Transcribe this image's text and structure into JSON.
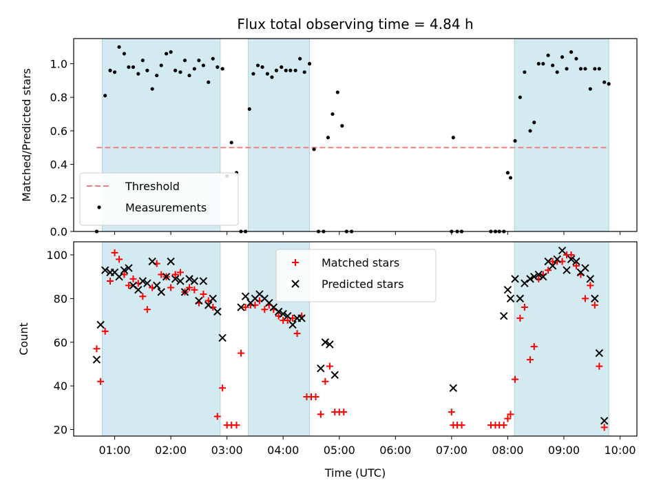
{
  "chart_data": {
    "title": "Flux total observing time = 4.84 h",
    "xlabel": "Time (UTC)",
    "x_tick_labels": [
      "01:00",
      "02:00",
      "03:00",
      "04:00",
      "05:00",
      "06:00",
      "07:00",
      "08:00",
      "09:00",
      "10:00"
    ],
    "x_range_hours": [
      0.27,
      10.3
    ],
    "shaded_intervals_hours": [
      [
        0.78,
        2.88
      ],
      [
        3.38,
        4.47
      ],
      [
        8.12,
        9.8
      ]
    ],
    "shade_color": "#d3eaf1",
    "panels": [
      {
        "type": "scatter",
        "ylabel": "Matched/Predicted stars",
        "ylim": [
          0,
          1.15
        ],
        "yticks": [
          0.0,
          0.2,
          0.4,
          0.6,
          0.8,
          1.0
        ],
        "ytick_labels": [
          "0.0",
          "0.2",
          "0.4",
          "0.6",
          "0.8",
          "1.0"
        ],
        "legend": "lower-left",
        "threshold": {
          "name": "Threshold",
          "value": 0.5,
          "x_range": [
            0.68,
            9.8
          ],
          "color": "#f08080"
        },
        "series": [
          {
            "name": "Measurements",
            "color": "#000000",
            "marker": "dot",
            "points": [
              [
                0.68,
                0.0
              ],
              [
                0.83,
                0.81
              ],
              [
                0.92,
                0.96
              ],
              [
                1.0,
                0.95
              ],
              [
                1.08,
                1.1
              ],
              [
                1.17,
                1.06
              ],
              [
                1.25,
                0.98
              ],
              [
                1.33,
                0.98
              ],
              [
                1.42,
                0.94
              ],
              [
                1.5,
                1.02
              ],
              [
                1.58,
                0.96
              ],
              [
                1.67,
                0.85
              ],
              [
                1.75,
                0.93
              ],
              [
                1.83,
                0.99
              ],
              [
                1.92,
                1.06
              ],
              [
                2.0,
                1.07
              ],
              [
                2.08,
                0.96
              ],
              [
                2.17,
                0.95
              ],
              [
                2.25,
                1.02
              ],
              [
                2.33,
                0.93
              ],
              [
                2.42,
                0.97
              ],
              [
                2.5,
                1.02
              ],
              [
                2.58,
                0.99
              ],
              [
                2.67,
                0.89
              ],
              [
                2.75,
                1.03
              ],
              [
                2.83,
                0.98
              ],
              [
                2.92,
                0.97
              ],
              [
                3.0,
                0.33
              ],
              [
                3.08,
                0.53
              ],
              [
                3.17,
                0.35
              ],
              [
                3.25,
                0.0
              ],
              [
                3.33,
                0.0
              ],
              [
                3.4,
                0.73
              ],
              [
                3.47,
                0.94
              ],
              [
                3.55,
                0.99
              ],
              [
                3.63,
                0.98
              ],
              [
                3.72,
                0.94
              ],
              [
                3.8,
                0.92
              ],
              [
                3.88,
                0.96
              ],
              [
                3.97,
                0.98
              ],
              [
                4.05,
                0.96
              ],
              [
                4.13,
                0.96
              ],
              [
                4.22,
                0.96
              ],
              [
                4.3,
                1.03
              ],
              [
                4.38,
                0.95
              ],
              [
                4.47,
                1.0
              ],
              [
                4.55,
                0.49
              ],
              [
                4.63,
                0.0
              ],
              [
                4.72,
                0.0
              ],
              [
                4.8,
                0.56
              ],
              [
                4.88,
                0.7
              ],
              [
                4.97,
                0.83
              ],
              [
                5.05,
                0.63
              ],
              [
                5.13,
                0.0
              ],
              [
                5.22,
                0.0
              ],
              [
                7.0,
                0.0
              ],
              [
                7.03,
                0.56
              ],
              [
                7.1,
                0.0
              ],
              [
                7.18,
                0.0
              ],
              [
                7.7,
                0.0
              ],
              [
                7.78,
                0.0
              ],
              [
                7.85,
                0.0
              ],
              [
                7.93,
                0.0
              ],
              [
                8.0,
                0.35
              ],
              [
                8.05,
                0.32
              ],
              [
                8.13,
                0.54
              ],
              [
                8.22,
                0.8
              ],
              [
                8.3,
                0.95
              ],
              [
                8.4,
                0.6
              ],
              [
                8.47,
                0.65
              ],
              [
                8.55,
                1.0
              ],
              [
                8.63,
                1.0
              ],
              [
                8.72,
                1.05
              ],
              [
                8.8,
                0.99
              ],
              [
                8.88,
                0.95
              ],
              [
                8.97,
                1.04
              ],
              [
                9.05,
                0.97
              ],
              [
                9.13,
                1.07
              ],
              [
                9.22,
                1.03
              ],
              [
                9.3,
                0.97
              ],
              [
                9.38,
                0.97
              ],
              [
                9.47,
                0.85
              ],
              [
                9.55,
                0.97
              ],
              [
                9.63,
                0.97
              ],
              [
                9.72,
                0.89
              ],
              [
                9.8,
                0.88
              ]
            ]
          }
        ]
      },
      {
        "type": "scatter",
        "ylabel": "Count",
        "ylim": [
          17,
          106
        ],
        "yticks": [
          20,
          40,
          60,
          80,
          100
        ],
        "ytick_labels": [
          "20",
          "40",
          "60",
          "80",
          "100"
        ],
        "legend": "top-center",
        "series": [
          {
            "name": "Matched stars",
            "color": "#ff0000",
            "marker": "plus",
            "points": [
              [
                0.68,
                57
              ],
              [
                0.75,
                42
              ],
              [
                0.83,
                65
              ],
              [
                0.92,
                88
              ],
              [
                1.0,
                101
              ],
              [
                1.08,
                98
              ],
              [
                1.17,
                91
              ],
              [
                1.25,
                86
              ],
              [
                1.33,
                89
              ],
              [
                1.42,
                87
              ],
              [
                1.5,
                81
              ],
              [
                1.58,
                75
              ],
              [
                1.67,
                85
              ],
              [
                1.75,
                96
              ],
              [
                1.83,
                91
              ],
              [
                1.92,
                90
              ],
              [
                2.0,
                85
              ],
              [
                2.08,
                91
              ],
              [
                2.17,
                92
              ],
              [
                2.25,
                83
              ],
              [
                2.33,
                85
              ],
              [
                2.42,
                84
              ],
              [
                2.5,
                78
              ],
              [
                2.58,
                82
              ],
              [
                2.67,
                79
              ],
              [
                2.75,
                76
              ],
              [
                2.83,
                26
              ],
              [
                2.92,
                39
              ],
              [
                3.0,
                22
              ],
              [
                3.08,
                22
              ],
              [
                3.17,
                22
              ],
              [
                3.25,
                55
              ],
              [
                3.33,
                76
              ],
              [
                3.42,
                77
              ],
              [
                3.5,
                77
              ],
              [
                3.58,
                79
              ],
              [
                3.67,
                75
              ],
              [
                3.75,
                77
              ],
              [
                3.83,
                75
              ],
              [
                3.92,
                72
              ],
              [
                4.0,
                70
              ],
              [
                4.08,
                70
              ],
              [
                4.17,
                71
              ],
              [
                4.25,
                64
              ],
              [
                4.33,
                72
              ],
              [
                4.42,
                35
              ],
              [
                4.5,
                35
              ],
              [
                4.58,
                35
              ],
              [
                4.67,
                27
              ],
              [
                4.75,
                42
              ],
              [
                4.83,
                49
              ],
              [
                4.92,
                28
              ],
              [
                5.0,
                28
              ],
              [
                5.08,
                28
              ],
              [
                7.0,
                28
              ],
              [
                7.03,
                22
              ],
              [
                7.1,
                22
              ],
              [
                7.18,
                22
              ],
              [
                7.7,
                22
              ],
              [
                7.78,
                22
              ],
              [
                7.85,
                22
              ],
              [
                7.93,
                22
              ],
              [
                8.0,
                25
              ],
              [
                8.05,
                27
              ],
              [
                8.13,
                43
              ],
              [
                8.22,
                71
              ],
              [
                8.3,
                76
              ],
              [
                8.4,
                52
              ],
              [
                8.47,
                58
              ],
              [
                8.55,
                89
              ],
              [
                8.63,
                91
              ],
              [
                8.72,
                93
              ],
              [
                8.8,
                97
              ],
              [
                8.88,
                97
              ],
              [
                8.97,
                97
              ],
              [
                9.05,
                100
              ],
              [
                9.13,
                100
              ],
              [
                9.22,
                95
              ],
              [
                9.3,
                91
              ],
              [
                9.38,
                80
              ],
              [
                9.47,
                86
              ],
              [
                9.55,
                77
              ],
              [
                9.63,
                49
              ],
              [
                9.72,
                21
              ]
            ]
          },
          {
            "name": "Predicted stars",
            "color": "#000000",
            "marker": "x",
            "points": [
              [
                0.68,
                52
              ],
              [
                0.75,
                68
              ],
              [
                0.83,
                93
              ],
              [
                0.92,
                92
              ],
              [
                1.0,
                92
              ],
              [
                1.08,
                90
              ],
              [
                1.17,
                93
              ],
              [
                1.25,
                94
              ],
              [
                1.33,
                86
              ],
              [
                1.42,
                84
              ],
              [
                1.5,
                88
              ],
              [
                1.58,
                87
              ],
              [
                1.67,
                97
              ],
              [
                1.75,
                86
              ],
              [
                1.83,
                83
              ],
              [
                1.92,
                90
              ],
              [
                2.0,
                97
              ],
              [
                2.08,
                89
              ],
              [
                2.17,
                88
              ],
              [
                2.25,
                83
              ],
              [
                2.33,
                89
              ],
              [
                2.42,
                88
              ],
              [
                2.5,
                79
              ],
              [
                2.58,
                88
              ],
              [
                2.67,
                77
              ],
              [
                2.75,
                80
              ],
              [
                2.83,
                74
              ],
              [
                2.92,
                62
              ],
              [
                3.25,
                76
              ],
              [
                3.33,
                81
              ],
              [
                3.42,
                78
              ],
              [
                3.5,
                80
              ],
              [
                3.58,
                82
              ],
              [
                3.67,
                80
              ],
              [
                3.75,
                78
              ],
              [
                3.83,
                76
              ],
              [
                3.92,
                74
              ],
              [
                4.0,
                73
              ],
              [
                4.08,
                72
              ],
              [
                4.17,
                68
              ],
              [
                4.25,
                71
              ],
              [
                4.33,
                71
              ],
              [
                4.67,
                48
              ],
              [
                4.75,
                60
              ],
              [
                4.83,
                59
              ],
              [
                4.92,
                45
              ],
              [
                7.03,
                39
              ],
              [
                7.93,
                72
              ],
              [
                8.0,
                84
              ],
              [
                8.05,
                80
              ],
              [
                8.13,
                89
              ],
              [
                8.22,
                80
              ],
              [
                8.3,
                87
              ],
              [
                8.4,
                89
              ],
              [
                8.47,
                90
              ],
              [
                8.55,
                91
              ],
              [
                8.63,
                90
              ],
              [
                8.72,
                97
              ],
              [
                8.8,
                95
              ],
              [
                8.88,
                98
              ],
              [
                8.97,
                102
              ],
              [
                9.05,
                93
              ],
              [
                9.13,
                98
              ],
              [
                9.22,
                97
              ],
              [
                9.3,
                92
              ],
              [
                9.38,
                94
              ],
              [
                9.47,
                89
              ],
              [
                9.55,
                80
              ],
              [
                9.63,
                55
              ],
              [
                9.72,
                24
              ]
            ]
          }
        ]
      }
    ]
  }
}
